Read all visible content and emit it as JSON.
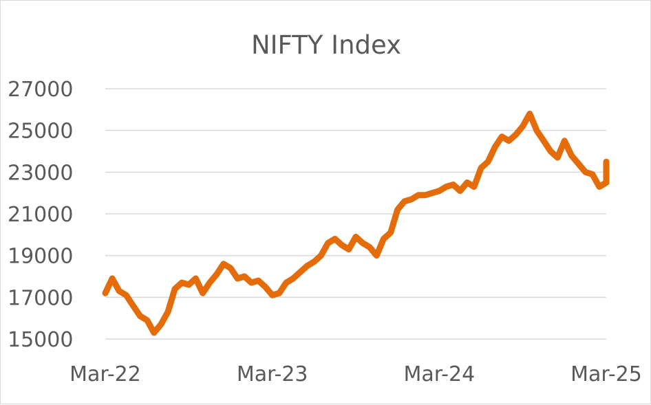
{
  "chart_data": {
    "type": "line",
    "title": "NIFTY Index",
    "xlabel": "",
    "ylabel": "",
    "x_tick_labels": [
      "Mar-22",
      "Mar-23",
      "Mar-24",
      "Mar-25"
    ],
    "y_ticks": [
      15000,
      17000,
      19000,
      21000,
      23000,
      25000,
      27000
    ],
    "y_tick_labels": [
      "15000",
      "17000",
      "19000",
      "21000",
      "23000",
      "25000",
      "27000"
    ],
    "ylim": [
      15000,
      27000
    ],
    "xlim": [
      "Mar-22",
      "Mar-25"
    ],
    "grid": "horizontal",
    "legend": "none",
    "line_color": "#E46C0A",
    "series": [
      {
        "x": [
          "Mar-22",
          "Mar-22",
          "Apr-22",
          "Apr-22",
          "May-22",
          "May-22",
          "Jun-22",
          "Jun-22",
          "Jul-22",
          "Jul-22",
          "Aug-22",
          "Aug-22",
          "Sep-22",
          "Sep-22",
          "Oct-22",
          "Oct-22",
          "Nov-22",
          "Nov-22",
          "Dec-22",
          "Dec-22",
          "Jan-23",
          "Jan-23",
          "Feb-23",
          "Feb-23",
          "Mar-23",
          "Mar-23",
          "Apr-23",
          "Apr-23",
          "May-23",
          "May-23",
          "Jun-23",
          "Jun-23",
          "Jul-23",
          "Jul-23",
          "Aug-23",
          "Aug-23",
          "Sep-23",
          "Sep-23",
          "Oct-23",
          "Oct-23",
          "Nov-23",
          "Nov-23",
          "Dec-23",
          "Dec-23",
          "Jan-24",
          "Jan-24",
          "Feb-24",
          "Feb-24",
          "Mar-24",
          "Mar-24",
          "Apr-24",
          "Apr-24",
          "May-24",
          "May-24",
          "Jun-24",
          "Jun-24",
          "Jul-24",
          "Jul-24",
          "Aug-24",
          "Aug-24",
          "Sep-24",
          "Sep-24",
          "Oct-24",
          "Oct-24",
          "Nov-24",
          "Nov-24",
          "Dec-24",
          "Dec-24",
          "Jan-25",
          "Jan-25",
          "Feb-25",
          "Feb-25",
          "Mar-25",
          "Mar-25"
        ],
        "y": [
          17200,
          17900,
          17300,
          17100,
          16600,
          16100,
          15900,
          15300,
          15700,
          16300,
          17400,
          17700,
          17600,
          17900,
          17200,
          17700,
          18100,
          18600,
          18400,
          17900,
          18000,
          17700,
          17800,
          17500,
          17100,
          17200,
          17700,
          17900,
          18200,
          18500,
          18700,
          19000,
          19600,
          19800,
          19500,
          19300,
          19900,
          19600,
          19400,
          19000,
          19800,
          20100,
          21200,
          21600,
          21700,
          21900,
          21900,
          22000,
          22100,
          22300,
          22400,
          22100,
          22500,
          22300,
          23200,
          23500,
          24200,
          24700,
          24500,
          24800,
          25200,
          25800,
          25000,
          24500,
          24000,
          23700,
          24500,
          23800,
          23400,
          23000,
          22900,
          22300,
          22500,
          23500
        ]
      }
    ]
  }
}
